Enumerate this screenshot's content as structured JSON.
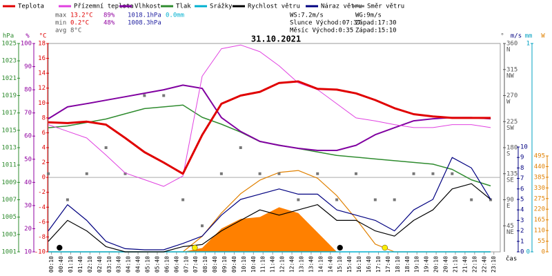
{
  "chart_data": {
    "type": "line",
    "title": "31.10.2021",
    "x_label": "čas",
    "x": [
      0,
      60,
      120,
      180,
      240,
      300,
      360,
      420,
      480,
      540,
      600,
      660,
      720,
      780,
      840,
      900,
      960,
      1020,
      1080,
      1140,
      1200,
      1260,
      1320,
      1380
    ],
    "xlim": [
      0,
      1410
    ],
    "xticks": [
      {
        "value": 10,
        "label": "00:10"
      },
      {
        "value": 40,
        "label": "00:40"
      },
      {
        "value": 70,
        "label": "01:10"
      },
      {
        "value": 100,
        "label": "01:40"
      },
      {
        "value": 130,
        "label": "02:10"
      },
      {
        "value": 160,
        "label": "02:40"
      },
      {
        "value": 190,
        "label": "03:10"
      },
      {
        "value": 220,
        "label": "03:40"
      },
      {
        "value": 250,
        "label": "04:10"
      },
      {
        "value": 280,
        "label": "04:40"
      },
      {
        "value": 310,
        "label": "05:10"
      },
      {
        "value": 340,
        "label": "05:40"
      },
      {
        "value": 370,
        "label": "06:10"
      },
      {
        "value": 400,
        "label": "06:40"
      },
      {
        "value": 430,
        "label": "07:10"
      },
      {
        "value": 460,
        "label": "07:40"
      },
      {
        "value": 490,
        "label": "08:10"
      },
      {
        "value": 520,
        "label": "08:40"
      },
      {
        "value": 550,
        "label": "09:10"
      },
      {
        "value": 580,
        "label": "09:40"
      },
      {
        "value": 610,
        "label": "10:10"
      },
      {
        "value": 640,
        "label": "10:40"
      },
      {
        "value": 670,
        "label": "11:10"
      },
      {
        "value": 700,
        "label": "11:40"
      },
      {
        "value": 730,
        "label": "12:10"
      },
      {
        "value": 760,
        "label": "12:40"
      },
      {
        "value": 790,
        "label": "13:10"
      },
      {
        "value": 820,
        "label": "13:40"
      },
      {
        "value": 850,
        "label": "14:10"
      },
      {
        "value": 880,
        "label": "14:40"
      },
      {
        "value": 910,
        "label": "15:10"
      },
      {
        "value": 940,
        "label": "15:40"
      },
      {
        "value": 970,
        "label": "16:10"
      },
      {
        "value": 1000,
        "label": "16:40"
      },
      {
        "value": 1030,
        "label": "17:10"
      },
      {
        "value": 1060,
        "label": "17:40"
      },
      {
        "value": 1090,
        "label": "18:10"
      },
      {
        "value": 1120,
        "label": "18:40"
      },
      {
        "value": 1150,
        "label": "19:10"
      },
      {
        "value": 1180,
        "label": "19:40"
      },
      {
        "value": 1210,
        "label": "20:10"
      },
      {
        "value": 1240,
        "label": "20:40"
      },
      {
        "value": 1270,
        "label": "21:10"
      },
      {
        "value": 1300,
        "label": "21:40"
      },
      {
        "value": 1330,
        "label": "22:10"
      },
      {
        "value": 1360,
        "label": "22:40"
      },
      {
        "value": 1390,
        "label": "23:10"
      }
    ],
    "axes": [
      {
        "label": "hPa",
        "color": "#2e8b2e",
        "lim": [
          1001,
          1025
        ],
        "ticks": [
          1001,
          1003,
          1005,
          1007,
          1009,
          1011,
          1013,
          1015,
          1017,
          1019,
          1021,
          1023,
          1025
        ]
      },
      {
        "label": "%",
        "color": "#9000a0",
        "lim": [
          10,
          100
        ],
        "ticks": [
          10,
          20,
          30,
          40,
          50,
          60,
          70,
          80,
          90,
          100
        ]
      },
      {
        "label": "°C",
        "color": "#e00000",
        "lim": [
          -10,
          18
        ],
        "ticks": [
          -10,
          -8,
          -6,
          -4,
          -2,
          0,
          2,
          4,
          6,
          8,
          10,
          12,
          14,
          16,
          18
        ]
      },
      {
        "label": "°",
        "color": "#555555",
        "lim": [
          0,
          360
        ],
        "ticks": [
          45,
          90,
          135,
          180,
          225,
          270,
          315,
          360
        ],
        "compass": [
          "NE",
          "E",
          "SE",
          "S",
          "SW",
          "W",
          "NW",
          "N"
        ]
      },
      {
        "label": "m/s",
        "color": "#000080",
        "lim": [
          0,
          10
        ],
        "ticks": [
          0,
          1,
          2,
          3,
          4,
          5,
          6,
          7,
          8,
          9,
          10
        ]
      },
      {
        "label": "mm",
        "color": "#00a0c0",
        "lim": [
          0,
          1
        ],
        "ticks": [
          0,
          1
        ]
      },
      {
        "label": "W",
        "color": "#e08000",
        "lim": [
          0,
          495
        ],
        "ticks": [
          0,
          55,
          110,
          165,
          220,
          275,
          330,
          385,
          440,
          495
        ]
      }
    ],
    "series": [
      {
        "name": "Teplota",
        "color": "#e00000",
        "axis": 2,
        "style": "line",
        "width": 3,
        "values": [
          7.4,
          7.3,
          7.5,
          7.1,
          5.3,
          3.4,
          2,
          0.5,
          5.7,
          9.9,
          11,
          11.5,
          12.7,
          12.9,
          11.9,
          11.8,
          11.3,
          10.4,
          9.3,
          8.5,
          8.2,
          8,
          8,
          8
        ]
      },
      {
        "name": "Přízemní teplota",
        "color": "#e040e0",
        "axis": 2,
        "style": "line",
        "width": 1,
        "values": [
          7.1,
          6.2,
          5.3,
          3,
          0.6,
          -0.3,
          -1.2,
          0.2,
          13.6,
          17.3,
          17.8,
          16.9,
          15,
          12.7,
          11.8,
          9.9,
          8,
          7.6,
          7.1,
          6.7,
          6.7,
          7.1,
          7.1,
          6.7
        ]
      },
      {
        "name": "Vlhkost",
        "color": "#8000a0",
        "axis": 1,
        "style": "line",
        "width": 2,
        "values": [
          67.5,
          72.6,
          74,
          75.5,
          77,
          78.5,
          80,
          82,
          80.6,
          68,
          62,
          57.7,
          56,
          54.7,
          53.8,
          53.8,
          56,
          60.6,
          63.6,
          66.6,
          67.5,
          68,
          68,
          67.5
        ]
      },
      {
        "name": "Tlak",
        "color": "#2e8b2e",
        "axis": 0,
        "style": "line",
        "width": 1.5,
        "values": [
          1015.3,
          1015.5,
          1015.9,
          1016.3,
          1016.9,
          1017.5,
          1017.7,
          1017.9,
          1016.5,
          1015.7,
          1014.8,
          1013.7,
          1013.3,
          1012.9,
          1012.5,
          1012.1,
          1011.9,
          1011.7,
          1011.5,
          1011.3,
          1011.1,
          1010.5,
          1009.3,
          1008.6
        ]
      },
      {
        "name": "Srážky",
        "color": "#00b0d0",
        "axis": 5,
        "style": "line",
        "width": 1.5,
        "values": [
          0,
          0,
          0,
          0,
          0,
          0,
          0,
          0,
          0,
          0,
          0,
          0,
          0,
          0,
          0,
          0,
          0,
          0,
          0,
          0,
          0,
          0,
          0,
          0
        ]
      },
      {
        "name": "Rychlost větru",
        "color": "#000000",
        "axis": 4,
        "style": "line",
        "width": 1.2,
        "values": [
          1,
          3,
          2,
          0.5,
          0,
          0,
          0,
          0.5,
          0.7,
          2,
          3,
          4,
          3.5,
          4,
          4.5,
          3,
          3,
          2,
          1.5,
          3,
          4,
          6,
          6.5,
          5
        ]
      },
      {
        "name": "Náraz větru",
        "color": "#000080",
        "axis": 4,
        "style": "line",
        "width": 1.2,
        "values": [
          2,
          4.5,
          3,
          1,
          0.3,
          0.2,
          0.2,
          0.8,
          1.5,
          3.5,
          5,
          5.5,
          6,
          5.5,
          5.5,
          4,
          3.5,
          3,
          2,
          4,
          5,
          9,
          8,
          5
        ]
      },
      {
        "name": "Směr větru",
        "color": "#777777",
        "axis": 3,
        "style": "squares",
        "values": [
          135,
          90,
          135,
          180,
          135,
          270,
          270,
          90,
          45,
          135,
          180,
          135,
          135,
          90,
          135,
          90,
          135,
          90,
          90,
          135,
          135,
          135,
          90,
          90
        ]
      },
      {
        "color": "#ff8000",
        "axis": 6,
        "style": "area",
        "values": [
          0,
          0,
          0,
          0,
          0,
          0,
          0,
          0,
          20,
          120,
          170,
          180,
          230,
          200,
          100,
          0,
          0,
          0,
          0,
          0,
          0,
          0,
          0,
          0
        ]
      },
      {
        "color": "#e08000",
        "axis": 6,
        "style": "line",
        "width": 1.2,
        "values": [
          0,
          0,
          0,
          0,
          0,
          0,
          0,
          0,
          80,
          200,
          300,
          370,
          410,
          420,
          380,
          290,
          170,
          40,
          0,
          0,
          0,
          0,
          0,
          0
        ]
      }
    ],
    "markers": [
      {
        "x": 35,
        "color": "#000000"
      },
      {
        "x": 457,
        "color": "#ffee00"
      },
      {
        "x": 910,
        "color": "#000000"
      },
      {
        "x": 1050,
        "color": "#ffee00"
      }
    ],
    "stats": [
      [
        {
          "text": "max",
          "color": "#555555"
        },
        {
          "text": "13.2°C",
          "color": "#e00000"
        },
        {
          "text": "89%",
          "color": "#9000a0"
        },
        {
          "text": "1018.1hPa",
          "color": "#2020a0"
        },
        {
          "text": "0.0mm",
          "color": "#00b0d0"
        }
      ],
      [
        {
          "text": "min",
          "color": "#555555"
        },
        {
          "text": "0.2°C",
          "color": "#e00000"
        },
        {
          "text": "48%",
          "color": "#9000a0"
        },
        {
          "text": "1008.3hPa",
          "color": "#2020a0"
        }
      ],
      [
        {
          "text": "avg",
          "color": "#555555"
        },
        {
          "text": "8°C",
          "color": "#555555"
        }
      ]
    ],
    "info": [
      [
        "WS:7.2m/s",
        "WG:9m/s"
      ],
      [
        "Slunce Východ:07:37",
        "Západ:17:30"
      ],
      [
        "Měsíc Východ:0:35",
        "Západ:15:10"
      ]
    ]
  }
}
